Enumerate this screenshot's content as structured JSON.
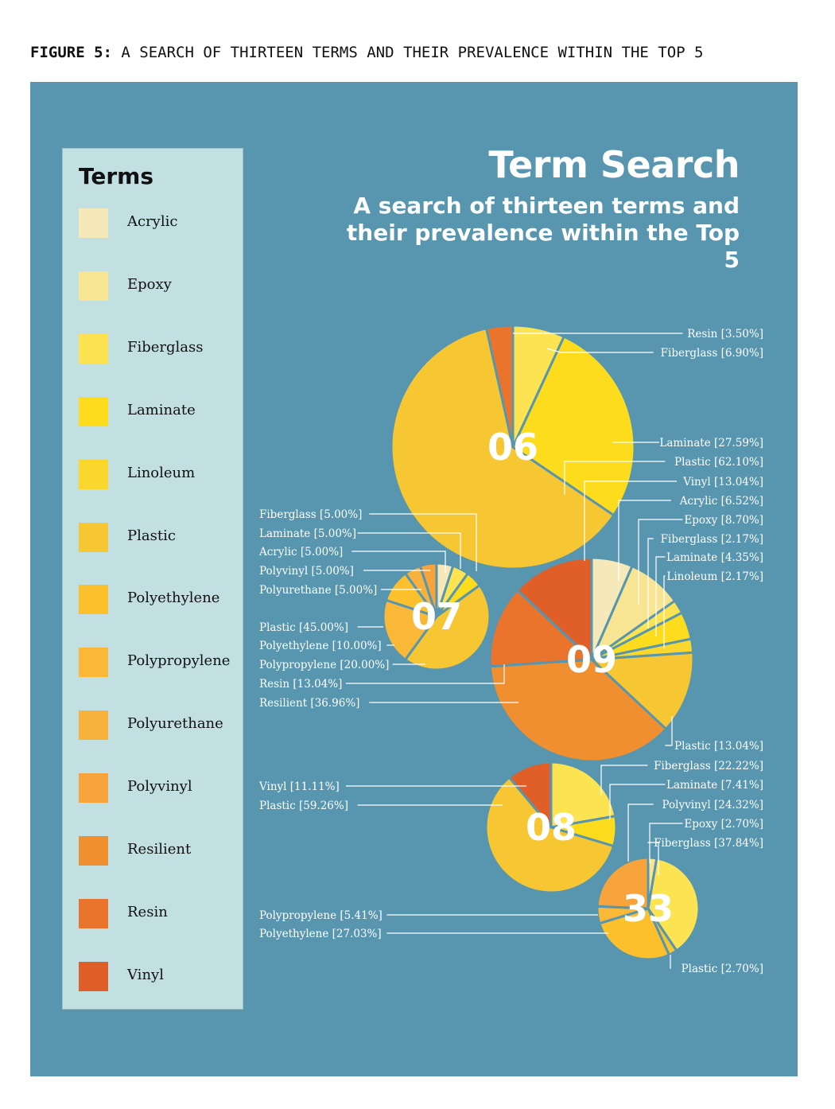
{
  "figure_caption": {
    "prefix": "FIGURE 5:",
    "text": " A SEARCH OF THIRTEEN TERMS AND THEIR PREVALENCE WITHIN THE TOP 5"
  },
  "colors": {
    "background": "#5796ae",
    "legend_bg": "#c2dfe2",
    "leader": "#ffffff"
  },
  "legend": {
    "title": "Terms",
    "items": [
      {
        "label": "Acrylic",
        "color": "#f5e9b9"
      },
      {
        "label": "Epoxy",
        "color": "#f8e593"
      },
      {
        "label": "Fiberglass",
        "color": "#fbe352"
      },
      {
        "label": "Laminate",
        "color": "#fcdc1d"
      },
      {
        "label": "Linoleum",
        "color": "#fad72c"
      },
      {
        "label": "Plastic",
        "color": "#f7c733"
      },
      {
        "label": "Polyethylene",
        "color": "#fbc02c"
      },
      {
        "label": "Polypropylene",
        "color": "#fab838"
      },
      {
        "label": "Polyurethane",
        "color": "#f7b23e"
      },
      {
        "label": "Polyvinyl",
        "color": "#f6a43b"
      },
      {
        "label": "Resilient",
        "color": "#f08f2f"
      },
      {
        "label": "Resin",
        "color": "#ea742b"
      },
      {
        "label": "Vinyl",
        "color": "#e05f28"
      }
    ]
  },
  "title": "Term Search",
  "subtitle": "A search of thirteen terms and their prevalence within the Top 5",
  "chart_data": {
    "type": "pie",
    "title": "Term Search",
    "subtitle": "A search of thirteen terms and their prevalence within the Top 5",
    "pies": [
      {
        "label": "06",
        "slices": [
          {
            "name": "Fiberglass",
            "value": 6.9,
            "text": "Fiberglass [6.90%]"
          },
          {
            "name": "Laminate",
            "value": 27.59,
            "text": "Laminate [27.59%]"
          },
          {
            "name": "Plastic",
            "value": 62.1,
            "text": "Plastic [62.10%]"
          },
          {
            "name": "Resin",
            "value": 3.5,
            "text": "Resin [3.50%]"
          }
        ]
      },
      {
        "label": "07",
        "slices": [
          {
            "name": "Acrylic",
            "value": 5.0,
            "text": "Acrylic [5.00%]"
          },
          {
            "name": "Fiberglass",
            "value": 5.0,
            "text": "Fiberglass [5.00%]"
          },
          {
            "name": "Laminate",
            "value": 5.0,
            "text": "Laminate [5.00%]"
          },
          {
            "name": "Plastic",
            "value": 45.0,
            "text": "Plastic [45.00%]"
          },
          {
            "name": "Polypropylene",
            "value": 20.0,
            "text": "Polypropylene [20.00%]"
          },
          {
            "name": "Polyethylene",
            "value": 10.0,
            "text": "Polyethylene [10.00%]"
          },
          {
            "name": "Polyurethane",
            "value": 5.0,
            "text": "Polyurethane [5.00%]"
          },
          {
            "name": "Polyvinyl",
            "value": 5.0,
            "text": "Polyvinyl [5.00%]"
          }
        ]
      },
      {
        "label": "09",
        "slices": [
          {
            "name": "Acrylic",
            "value": 6.52,
            "text": "Acrylic [6.52%]"
          },
          {
            "name": "Epoxy",
            "value": 8.7,
            "text": "Epoxy [8.70%]"
          },
          {
            "name": "Fiberglass",
            "value": 2.17,
            "text": "Fiberglass [2.17%]"
          },
          {
            "name": "Laminate",
            "value": 4.35,
            "text": "Laminate [4.35%]"
          },
          {
            "name": "Linoleum",
            "value": 2.17,
            "text": "Linoleum [2.17%]"
          },
          {
            "name": "Plastic",
            "value": 13.04,
            "text": "Plastic [13.04%]"
          },
          {
            "name": "Resilient",
            "value": 36.96,
            "text": "Resilient [36.96%]"
          },
          {
            "name": "Resin",
            "value": 13.04,
            "text": "Resin [13.04%]"
          },
          {
            "name": "Vinyl",
            "value": 13.04,
            "text": "Vinyl [13.04%]"
          }
        ]
      },
      {
        "label": "08",
        "slices": [
          {
            "name": "Fiberglass",
            "value": 22.22,
            "text": "Fiberglass [22.22%]"
          },
          {
            "name": "Laminate",
            "value": 7.41,
            "text": "Laminate [7.41%]"
          },
          {
            "name": "Plastic",
            "value": 59.26,
            "text": "Plastic [59.26%]"
          },
          {
            "name": "Vinyl",
            "value": 11.11,
            "text": "Vinyl [11.11%]"
          }
        ]
      },
      {
        "label": "33",
        "slices": [
          {
            "name": "Epoxy",
            "value": 2.7,
            "text": "Epoxy [2.70%]"
          },
          {
            "name": "Fiberglass",
            "value": 37.84,
            "text": "Fiberglass [37.84%]"
          },
          {
            "name": "Plastic",
            "value": 2.7,
            "text": "Plastic [2.70%]"
          },
          {
            "name": "Polyethylene",
            "value": 27.03,
            "text": "Polyethylene [27.03%]"
          },
          {
            "name": "Polypropylene",
            "value": 5.41,
            "text": "Polypropylene [5.41%]"
          },
          {
            "name": "Polyvinyl",
            "value": 24.32,
            "text": "Polyvinyl [24.32%]"
          }
        ]
      }
    ]
  }
}
